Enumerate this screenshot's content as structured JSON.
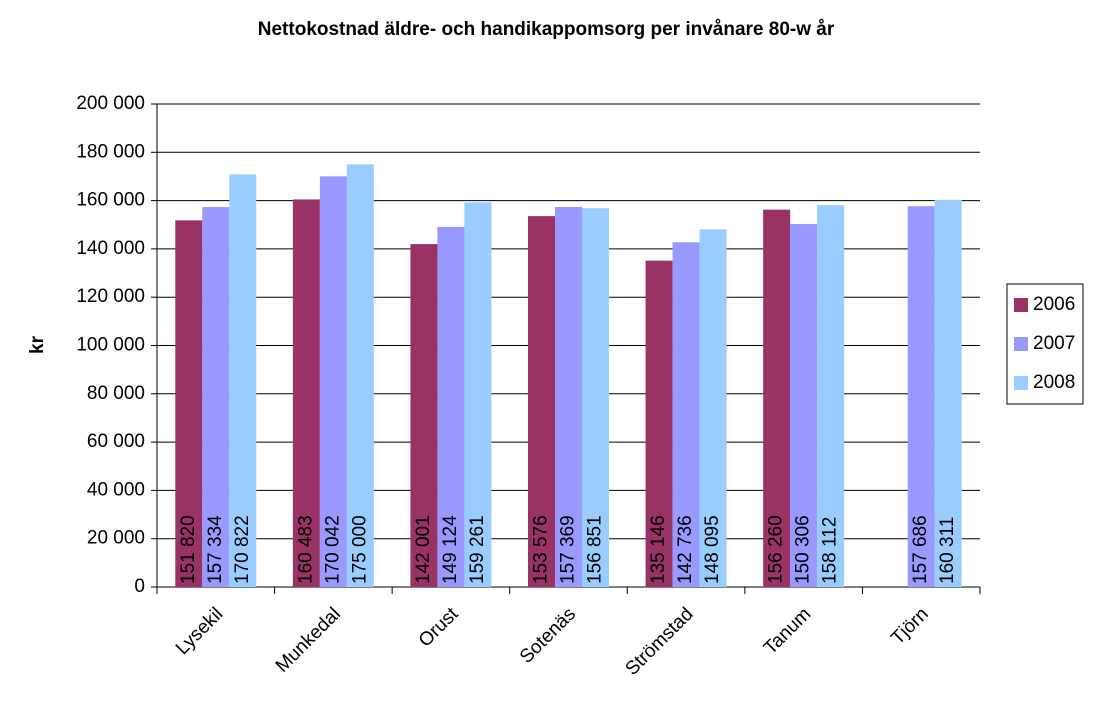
{
  "chart_data": {
    "type": "bar",
    "title": "Nettokostnad äldre- och handikappomsorg per invånare 80-w år",
    "y_label": "kr",
    "categories": [
      "Lysekil",
      "Munkedal",
      "Orust",
      "Sotenäs",
      "Strömstad",
      "Tanum",
      "Tjörn"
    ],
    "series": [
      {
        "name": "2006",
        "color": "#993366",
        "values": [
          151820,
          160483,
          142001,
          153576,
          135146,
          156260,
          null
        ],
        "value_labels": [
          "151 820",
          "160 483",
          "142 001",
          "153 576",
          "135 146",
          "156 260",
          null
        ]
      },
      {
        "name": "2007",
        "color": "#9999ff",
        "values": [
          157334,
          170042,
          149124,
          157369,
          142736,
          150306,
          157686
        ],
        "value_labels": [
          "157 334",
          "170 042",
          "149 124",
          "157 369",
          "142 736",
          "150 306",
          "157 686"
        ]
      },
      {
        "name": "2008",
        "color": "#99ccff",
        "values": [
          170822,
          175000,
          159261,
          156851,
          148095,
          158112,
          160311
        ],
        "value_labels": [
          "170 822",
          "175 000",
          "159 261",
          "156 851",
          "148 095",
          "158 112",
          "160 311"
        ]
      }
    ],
    "ylim": [
      0,
      200000
    ],
    "yticks": [
      0,
      {
        "value": 20000,
        "label": "20 000"
      },
      {
        "value": 40000,
        "label": "40 000"
      },
      {
        "value": 60000,
        "label": "60 000"
      },
      {
        "value": 80000,
        "label": "80 000"
      },
      {
        "value": 100000,
        "label": "100 000"
      },
      {
        "value": 120000,
        "label": "120 000"
      },
      {
        "value": 140000,
        "label": "140 000"
      },
      {
        "value": 160000,
        "label": "160 000"
      },
      {
        "value": 180000,
        "label": "180 000"
      },
      {
        "value": 200000,
        "label": "200 000"
      }
    ],
    "grid": true,
    "legend": "right"
  }
}
